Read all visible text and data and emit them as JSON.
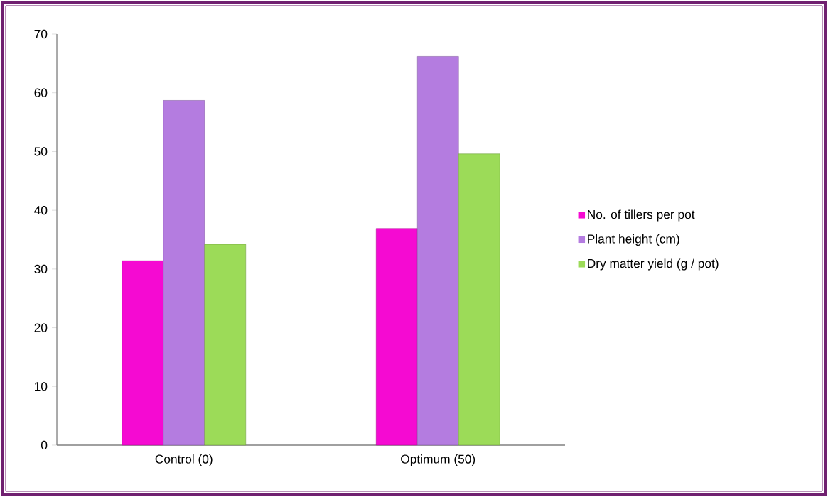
{
  "chart_data": {
    "type": "bar",
    "categories": [
      "Control (0)",
      "Optimum (50)"
    ],
    "series": [
      {
        "name": "No. of tillers per pot",
        "color": "#f50ad2",
        "values": [
          31.4,
          36.9
        ]
      },
      {
        "name": "Plant height (cm)",
        "color": "#b47ce0",
        "values": [
          58.7,
          66.2
        ]
      },
      {
        "name": "Dry matter yield (g / pot)",
        "color": "#9cdb58",
        "values": [
          34.2,
          49.6
        ]
      }
    ],
    "ylim": [
      0,
      70
    ],
    "yticks": [
      0,
      10,
      20,
      30,
      40,
      50,
      60,
      70
    ],
    "grid": false,
    "legend": "right"
  }
}
